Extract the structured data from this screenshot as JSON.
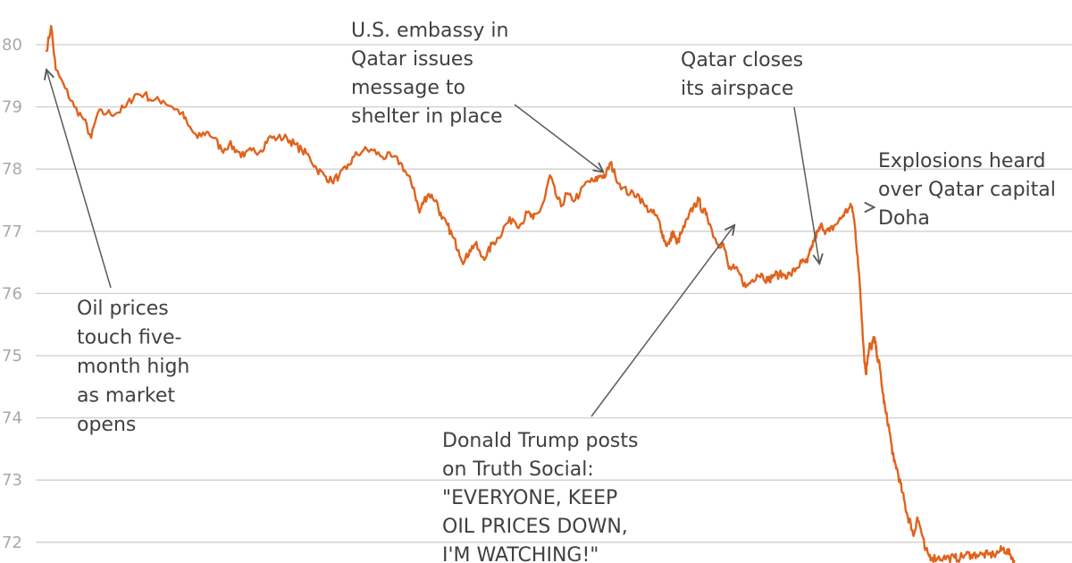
{
  "chart_data": {
    "type": "line",
    "title": "",
    "xlabel": "",
    "ylabel": "",
    "ylim": [
      71.7,
      80.55
    ],
    "grid": true,
    "y_ticks": [
      72,
      73,
      74,
      75,
      76,
      77,
      78,
      79,
      80
    ],
    "line_color": "#e0631d",
    "series": [
      {
        "points": [
          [
            0,
            79.9
          ],
          [
            5,
            80.3
          ],
          [
            10,
            79.6
          ],
          [
            20,
            79.3
          ],
          [
            30,
            79.0
          ],
          [
            40,
            78.8
          ],
          [
            48,
            78.5
          ],
          [
            55,
            78.9
          ],
          [
            65,
            78.9
          ],
          [
            75,
            78.9
          ],
          [
            85,
            79.0
          ],
          [
            95,
            79.2
          ],
          [
            105,
            79.2
          ],
          [
            115,
            79.1
          ],
          [
            125,
            79.1
          ],
          [
            135,
            79.0
          ],
          [
            145,
            78.9
          ],
          [
            152,
            78.7
          ],
          [
            162,
            78.5
          ],
          [
            172,
            78.6
          ],
          [
            180,
            78.5
          ],
          [
            188,
            78.3
          ],
          [
            196,
            78.4
          ],
          [
            204,
            78.3
          ],
          [
            212,
            78.2
          ],
          [
            220,
            78.3
          ],
          [
            230,
            78.3
          ],
          [
            238,
            78.5
          ],
          [
            248,
            78.5
          ],
          [
            258,
            78.5
          ],
          [
            266,
            78.4
          ],
          [
            274,
            78.3
          ],
          [
            282,
            78.2
          ],
          [
            290,
            78.0
          ],
          [
            298,
            77.9
          ],
          [
            306,
            77.8
          ],
          [
            314,
            77.9
          ],
          [
            322,
            78.0
          ],
          [
            330,
            78.2
          ],
          [
            340,
            78.3
          ],
          [
            350,
            78.3
          ],
          [
            360,
            78.2
          ],
          [
            370,
            78.2
          ],
          [
            380,
            78.1
          ],
          [
            387,
            77.9
          ],
          [
            394,
            77.7
          ],
          [
            400,
            77.3
          ],
          [
            405,
            77.5
          ],
          [
            410,
            77.6
          ],
          [
            418,
            77.5
          ],
          [
            424,
            77.2
          ],
          [
            430,
            77.1
          ],
          [
            436,
            76.9
          ],
          [
            442,
            76.7
          ],
          [
            448,
            76.5
          ],
          [
            454,
            76.7
          ],
          [
            460,
            76.8
          ],
          [
            466,
            76.6
          ],
          [
            472,
            76.6
          ],
          [
            478,
            76.8
          ],
          [
            485,
            76.9
          ],
          [
            492,
            77.1
          ],
          [
            500,
            77.2
          ],
          [
            508,
            77.1
          ],
          [
            516,
            77.3
          ],
          [
            522,
            77.2
          ],
          [
            528,
            77.3
          ],
          [
            534,
            77.5
          ],
          [
            540,
            77.9
          ],
          [
            546,
            77.6
          ],
          [
            552,
            77.4
          ],
          [
            558,
            77.6
          ],
          [
            564,
            77.5
          ],
          [
            572,
            77.6
          ],
          [
            580,
            77.8
          ],
          [
            588,
            77.8
          ],
          [
            594,
            77.9
          ],
          [
            600,
            77.9
          ],
          [
            605,
            78.1
          ],
          [
            610,
            77.9
          ],
          [
            618,
            77.7
          ],
          [
            626,
            77.6
          ],
          [
            634,
            77.6
          ],
          [
            642,
            77.4
          ],
          [
            650,
            77.3
          ],
          [
            656,
            77.2
          ],
          [
            660,
            77.0
          ],
          [
            664,
            76.8
          ],
          [
            668,
            76.8
          ],
          [
            672,
            77.0
          ],
          [
            676,
            76.8
          ],
          [
            682,
            77.0
          ],
          [
            688,
            77.2
          ],
          [
            694,
            77.4
          ],
          [
            700,
            77.5
          ],
          [
            704,
            77.3
          ],
          [
            708,
            77.3
          ],
          [
            714,
            77.0
          ],
          [
            720,
            76.8
          ],
          [
            726,
            76.8
          ],
          [
            732,
            76.4
          ],
          [
            738,
            76.4
          ],
          [
            744,
            76.3
          ],
          [
            750,
            76.1
          ],
          [
            756,
            76.2
          ],
          [
            762,
            76.3
          ],
          [
            768,
            76.3
          ],
          [
            774,
            76.2
          ],
          [
            780,
            76.3
          ],
          [
            786,
            76.3
          ],
          [
            792,
            76.3
          ],
          [
            798,
            76.3
          ],
          [
            804,
            76.4
          ],
          [
            810,
            76.5
          ],
          [
            816,
            76.5
          ],
          [
            820,
            76.7
          ],
          [
            824,
            76.9
          ],
          [
            828,
            77.0
          ],
          [
            832,
            77.1
          ],
          [
            836,
            77.0
          ],
          [
            840,
            77.0
          ],
          [
            846,
            77.1
          ],
          [
            852,
            77.2
          ],
          [
            856,
            77.3
          ],
          [
            860,
            77.35
          ],
          [
            864,
            77.4
          ],
          [
            867,
            77.1
          ],
          [
            870,
            76.6
          ],
          [
            873,
            76.0
          ],
          [
            875,
            75.5
          ],
          [
            877,
            75.0
          ],
          [
            879,
            74.7
          ],
          [
            881,
            75.0
          ],
          [
            883,
            75.2
          ],
          [
            885,
            75.1
          ],
          [
            887,
            75.3
          ],
          [
            889,
            75.2
          ],
          [
            891,
            75.0
          ],
          [
            894,
            74.8
          ],
          [
            897,
            74.4
          ],
          [
            900,
            74.1
          ],
          [
            903,
            73.9
          ],
          [
            906,
            73.6
          ],
          [
            909,
            73.3
          ],
          [
            912,
            73.2
          ],
          [
            915,
            73.0
          ],
          [
            918,
            72.8
          ],
          [
            921,
            72.6
          ],
          [
            924,
            72.4
          ],
          [
            927,
            72.3
          ],
          [
            930,
            72.1
          ],
          [
            934,
            72.4
          ],
          [
            938,
            72.2
          ],
          [
            942,
            71.9
          ],
          [
            946,
            71.8
          ],
          [
            950,
            71.75
          ],
          [
            956,
            71.75
          ],
          [
            962,
            71.75
          ],
          [
            968,
            71.75
          ],
          [
            974,
            71.75
          ],
          [
            980,
            71.75
          ],
          [
            986,
            71.8
          ],
          [
            992,
            71.8
          ],
          [
            998,
            71.8
          ],
          [
            1004,
            71.8
          ],
          [
            1010,
            71.8
          ],
          [
            1016,
            71.8
          ],
          [
            1022,
            71.85
          ],
          [
            1026,
            71.9
          ],
          [
            1030,
            71.85
          ],
          [
            1034,
            71.8
          ],
          [
            1038,
            71.7
          ]
        ]
      }
    ],
    "annotations": [
      {
        "id": "open",
        "lines": [
          "Oil prices",
          "touch five-",
          "month high",
          "as market",
          "opens"
        ],
        "anchor": [
          0,
          79.6
        ]
      },
      {
        "id": "embassy",
        "lines": [
          "U.S. embassy in",
          "Qatar issues",
          "message to",
          "shelter in place"
        ],
        "anchor": [
          604,
          77.85
        ]
      },
      {
        "id": "airspace",
        "lines": [
          "Qatar closes",
          "its airspace"
        ],
        "anchor": [
          832,
          76.42
        ]
      },
      {
        "id": "explosions",
        "lines": [
          "Explosions heard",
          "over Qatar capital",
          "Doha"
        ],
        "anchor": [
          884,
          77.38
        ]
      },
      {
        "id": "trump",
        "lines": [
          "Donald Trump posts",
          "on Truth Social:",
          "\"EVERYONE, KEEP",
          "OIL PRICES DOWN,",
          "I'M WATCHING!\""
        ],
        "anchor": [
          738,
          77.1
        ]
      }
    ]
  }
}
